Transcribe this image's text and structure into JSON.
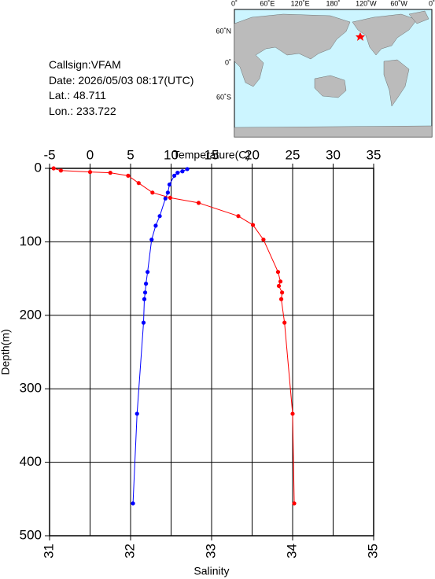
{
  "info": {
    "callsign": "Callsign:VFAM",
    "date": "Date:  2026/05/03 08:17(UTC)",
    "lat": "Lat.:  48.711",
    "lon": "Lon.:  233.722"
  },
  "map": {
    "top_labels": [
      "0˚",
      "60˚E",
      "120˚E",
      "180˚",
      "120˚W",
      "60˚W",
      "0˚"
    ],
    "left_labels": [
      "60˚N",
      "0˚",
      "60˚S"
    ]
  },
  "chart_data": {
    "type": "profile",
    "ylabel": "Depth(m)",
    "ylim": [
      0,
      500
    ],
    "yticks": [
      0,
      100,
      200,
      300,
      400,
      500
    ],
    "top_axis": {
      "label": "Temperature(C)",
      "lim": [
        -5,
        35
      ],
      "ticks": [
        -5,
        0,
        5,
        10,
        15,
        20,
        25,
        30,
        35
      ]
    },
    "bottom_axis": {
      "label": "Salinity",
      "lim": [
        31,
        35
      ],
      "ticks": [
        31,
        32,
        33,
        34,
        35
      ]
    },
    "grid": true,
    "series": [
      {
        "axis": "top",
        "color": "#0000ff",
        "depth": [
          1,
          4,
          6,
          10,
          22,
          33,
          41,
          65,
          78,
          97,
          141,
          157,
          169,
          178,
          210,
          334,
          456
        ],
        "values": [
          12.0,
          11.4,
          10.8,
          10.4,
          9.8,
          9.6,
          9.3,
          8.6,
          8.1,
          7.6,
          7.1,
          6.9,
          6.8,
          6.7,
          6.6,
          5.8,
          5.3
        ]
      },
      {
        "axis": "bottom",
        "color": "#ff0000",
        "depth": [
          0,
          3,
          5,
          6,
          10,
          20,
          33,
          40,
          47,
          65,
          77,
          97,
          141,
          154,
          160,
          169,
          178,
          210,
          334,
          456
        ],
        "values": [
          31.05,
          31.14,
          31.5,
          31.75,
          31.97,
          32.1,
          32.27,
          32.49,
          32.84,
          33.33,
          33.51,
          33.64,
          33.82,
          33.85,
          33.83,
          33.87,
          33.86,
          33.9,
          34.0,
          34.02
        ]
      }
    ]
  }
}
